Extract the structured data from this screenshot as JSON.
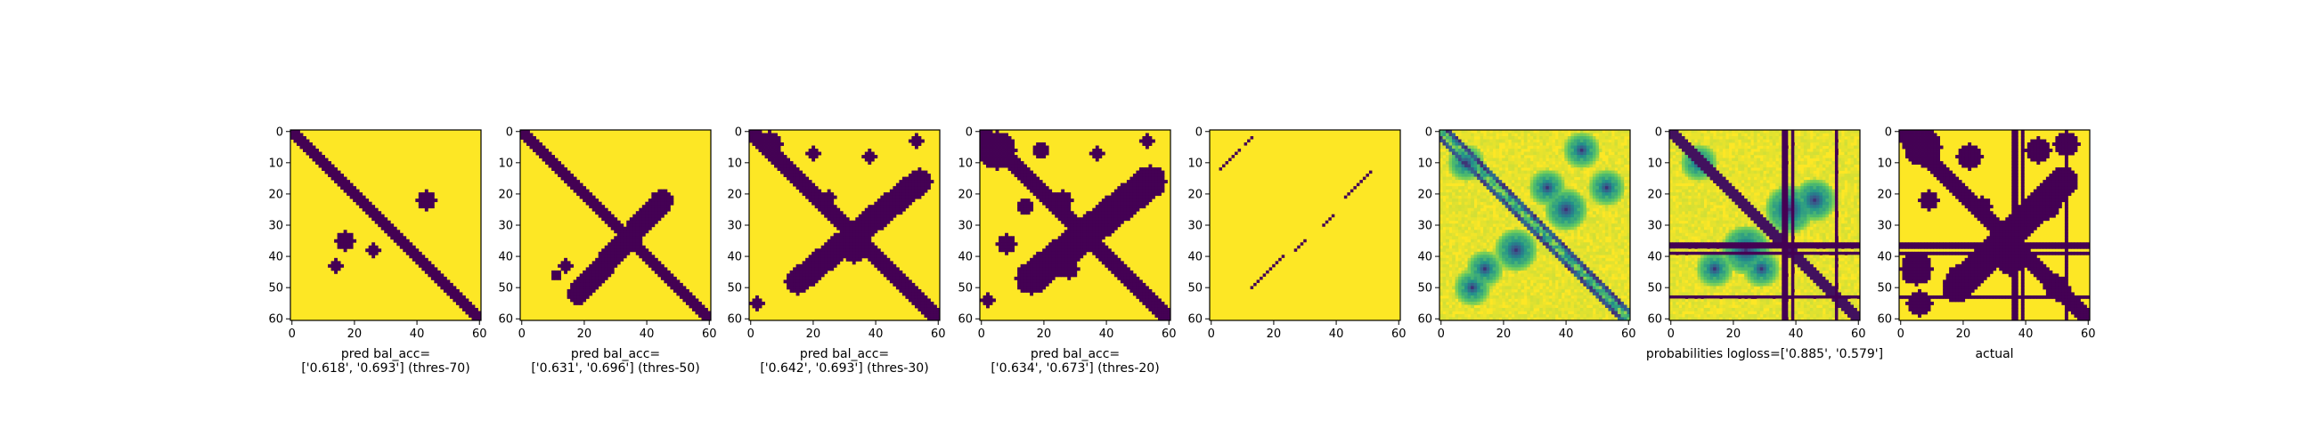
{
  "colors": {
    "low": "#440154",
    "high": "#fde725"
  },
  "chart_data": [
    {
      "type": "heatmap",
      "caption": [
        "pred bal_acc=",
        "['0.618', '0.693'] (thres-70)"
      ],
      "xticks": [
        "0",
        "20",
        "40",
        "60"
      ],
      "yticks": [
        "0",
        "10",
        "20",
        "30",
        "40",
        "50",
        "60"
      ],
      "xlim": [
        0,
        61
      ],
      "ylim": [
        0,
        61
      ],
      "mode": "binary",
      "diag_width": 2.2,
      "anti": null,
      "blobs": [
        [
          43,
          22,
          3
        ],
        [
          17,
          35,
          3
        ],
        [
          26,
          38,
          2
        ],
        [
          14,
          43,
          2
        ]
      ],
      "rows": [],
      "cols": []
    },
    {
      "type": "heatmap",
      "caption": [
        "pred bal_acc=",
        "['0.631', '0.696'] (thres-50)"
      ],
      "xticks": [
        "0",
        "20",
        "40",
        "60"
      ],
      "yticks": [
        "0",
        "10",
        "20",
        "30",
        "40",
        "50",
        "60"
      ],
      "xlim": [
        0,
        61
      ],
      "ylim": [
        0,
        61
      ],
      "mode": "binary",
      "diag_width": 2.5,
      "anti": [
        [
          18,
          52
        ],
        [
          45,
          22
        ],
        3.5
      ],
      "blobs": [
        [
          44,
          22,
          3
        ],
        [
          43,
          27,
          2
        ],
        [
          14,
          43,
          2
        ],
        [
          11,
          46,
          1.5
        ]
      ],
      "rows": [],
      "cols": []
    },
    {
      "type": "heatmap",
      "caption": [
        "pred bal_acc=",
        "['0.642', '0.693'] (thres-30)"
      ],
      "xticks": [
        "0",
        "20",
        "40",
        "60"
      ],
      "yticks": [
        "0",
        "10",
        "20",
        "30",
        "40",
        "50",
        "60"
      ],
      "xlim": [
        0,
        61
      ],
      "ylim": [
        0,
        61
      ],
      "mode": "binary",
      "diag_width": 3,
      "anti": [
        [
          15,
          48
        ],
        [
          54,
          16
        ],
        4
      ],
      "blobs": [
        [
          6,
          4,
          4
        ],
        [
          20,
          7,
          2
        ],
        [
          38,
          8,
          2
        ],
        [
          53,
          3,
          2
        ],
        [
          46,
          22,
          3
        ],
        [
          25,
          21,
          2
        ],
        [
          33,
          38,
          4
        ],
        [
          2,
          55,
          2
        ],
        [
          20,
          44,
          3
        ]
      ],
      "rows": [],
      "cols": []
    },
    {
      "type": "heatmap",
      "caption": [
        "pred bal_acc=",
        "['0.634', '0.673'] (thres-20)"
      ],
      "xticks": [
        "0",
        "20",
        "40",
        "60"
      ],
      "yticks": [
        "0",
        "10",
        "20",
        "30",
        "40",
        "50",
        "60"
      ],
      "xlim": [
        0,
        61
      ],
      "ylim": [
        0,
        61
      ],
      "mode": "binary",
      "diag_width": 3.5,
      "anti": [
        [
          16,
          47
        ],
        [
          54,
          16
        ],
        5
      ],
      "blobs": [
        [
          5,
          6,
          6
        ],
        [
          19,
          6,
          2.5
        ],
        [
          37,
          7,
          2
        ],
        [
          53,
          3,
          2
        ],
        [
          46,
          24,
          3
        ],
        [
          26,
          22,
          3
        ],
        [
          14,
          24,
          2.5
        ],
        [
          8,
          36,
          3
        ],
        [
          28,
          44,
          3
        ],
        [
          2,
          54,
          2
        ]
      ],
      "rows": [],
      "cols": []
    },
    {
      "type": "heatmap",
      "caption": [],
      "xticks": [
        "0",
        "20",
        "40",
        "60"
      ],
      "yticks": [
        "0",
        "10",
        "20",
        "30",
        "40",
        "50",
        "60"
      ],
      "xlim": [
        0,
        61
      ],
      "ylim": [
        0,
        61
      ],
      "mode": "dots",
      "dots": [
        [
          3,
          12
        ],
        [
          4,
          11
        ],
        [
          5,
          10
        ],
        [
          6,
          9
        ],
        [
          7,
          8
        ],
        [
          8,
          7
        ],
        [
          9,
          6
        ],
        [
          11,
          4
        ],
        [
          12,
          3
        ],
        [
          13,
          2
        ],
        [
          13,
          50
        ],
        [
          14,
          49
        ],
        [
          15,
          48
        ],
        [
          16,
          47
        ],
        [
          17,
          46
        ],
        [
          18,
          45
        ],
        [
          19,
          44
        ],
        [
          20,
          43
        ],
        [
          21,
          42
        ],
        [
          22,
          41
        ],
        [
          23,
          40
        ],
        [
          27,
          38
        ],
        [
          28,
          37
        ],
        [
          29,
          36
        ],
        [
          30,
          35
        ],
        [
          36,
          30
        ],
        [
          37,
          29
        ],
        [
          38,
          28
        ],
        [
          39,
          27
        ],
        [
          43,
          21
        ],
        [
          44,
          20
        ],
        [
          45,
          19
        ],
        [
          46,
          18
        ],
        [
          47,
          17
        ],
        [
          48,
          16
        ],
        [
          49,
          15
        ],
        [
          50,
          14
        ],
        [
          51,
          13
        ]
      ],
      "rows": [],
      "cols": []
    },
    {
      "type": "heatmap",
      "caption": [],
      "xticks": [
        "0",
        "20",
        "40",
        "60"
      ],
      "yticks": [
        "0",
        "10",
        "20",
        "30",
        "40",
        "50",
        "60"
      ],
      "xlim": [
        0,
        61
      ],
      "ylim": [
        0,
        61
      ],
      "mode": "prob",
      "bands": [
        1.8,
        3.8
      ],
      "blobs": [
        [
          40,
          25,
          4
        ],
        [
          24,
          38,
          4
        ],
        [
          14,
          44,
          3
        ],
        [
          10,
          50,
          3
        ],
        [
          8,
          10,
          3
        ],
        [
          45,
          6,
          3
        ],
        [
          53,
          18,
          3
        ],
        [
          34,
          18,
          3
        ]
      ],
      "rows": [],
      "cols": []
    },
    {
      "type": "heatmap",
      "caption": [
        "probabilities logloss=['0.885', '0.579']"
      ],
      "xticks": [
        "0",
        "20",
        "40",
        "60"
      ],
      "yticks": [
        "0",
        "10",
        "20",
        "30",
        "40",
        "50",
        "60"
      ],
      "xlim": [
        0,
        61
      ],
      "ylim": [
        0,
        61
      ],
      "mode": "prob",
      "bands": [
        2.5,
        0
      ],
      "blobs": [
        [
          38,
          25,
          5
        ],
        [
          24,
          38,
          5
        ],
        [
          14,
          44,
          3
        ],
        [
          9,
          10,
          3
        ],
        [
          46,
          22,
          4
        ],
        [
          29,
          44,
          3
        ]
      ],
      "rows": [
        36,
        37,
        39,
        53
      ],
      "cols": [
        36,
        37,
        39,
        53
      ]
    },
    {
      "type": "heatmap",
      "caption": [
        "actual"
      ],
      "xticks": [
        "0",
        "20",
        "40",
        "60"
      ],
      "yticks": [
        "0",
        "10",
        "20",
        "30",
        "40",
        "50",
        "60"
      ],
      "xlim": [
        0,
        61
      ],
      "ylim": [
        0,
        61
      ],
      "mode": "binary",
      "diag_width": 3.5,
      "anti": [
        [
          18,
          50
        ],
        [
          52,
          16
        ],
        4.5
      ],
      "blobs": [
        [
          7,
          5,
          6
        ],
        [
          22,
          8,
          4
        ],
        [
          44,
          6,
          4
        ],
        [
          53,
          4,
          4
        ],
        [
          9,
          22,
          3
        ],
        [
          26,
          24,
          3
        ],
        [
          47,
          24,
          4
        ],
        [
          5,
          44,
          5
        ],
        [
          18,
          46,
          3
        ],
        [
          35,
          42,
          4
        ],
        [
          50,
          50,
          4
        ],
        [
          6,
          55,
          4
        ]
      ],
      "rows": [
        36,
        37,
        39,
        53
      ],
      "cols": [
        36,
        37,
        39,
        53
      ]
    }
  ]
}
